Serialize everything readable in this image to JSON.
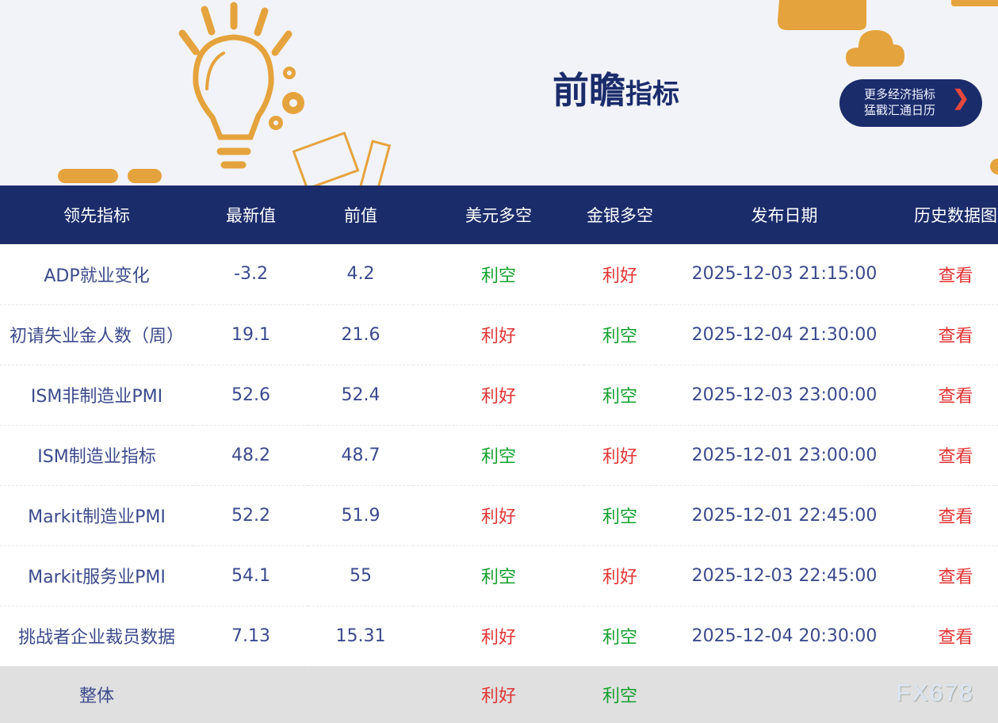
{
  "banner": {
    "title_big": "前瞻",
    "title_small": "指标",
    "more_line1": "更多经济指标",
    "more_line2": "猛戳汇通日历",
    "more_icon": "chevron-right-icon"
  },
  "colors": {
    "header": "#1b2c6b",
    "bullish": "#e03535",
    "bearish": "#14a02e",
    "accent": "#e5a33d"
  },
  "table": {
    "headers": [
      "领先指标",
      "最新值",
      "前值",
      "美元多空",
      "金银多空",
      "发布日期",
      "历史数据图"
    ],
    "rows": [
      [
        "ADP就业变化",
        "-3.2",
        "4.2",
        "利空",
        "利好",
        "2025-12-03 21:15:00",
        "查看"
      ],
      [
        "初请失业金人数（周）",
        "19.1",
        "21.6",
        "利好",
        "利空",
        "2025-12-04 21:30:00",
        "查看"
      ],
      [
        "ISM非制造业PMI",
        "52.6",
        "52.4",
        "利好",
        "利空",
        "2025-12-03 23:00:00",
        "查看"
      ],
      [
        "ISM制造业指标",
        "48.2",
        "48.7",
        "利空",
        "利好",
        "2025-12-01 23:00:00",
        "查看"
      ],
      [
        "Markit制造业PMI",
        "52.2",
        "51.9",
        "利好",
        "利空",
        "2025-12-01 22:45:00",
        "查看"
      ],
      [
        "Markit服务业PMI",
        "54.1",
        "55",
        "利空",
        "利好",
        "2025-12-03 22:45:00",
        "查看"
      ],
      [
        "挑战者企业裁员数据",
        "7.13",
        "15.31",
        "利好",
        "利空",
        "2025-12-04 20:30:00",
        "查看"
      ]
    ],
    "total": {
      "label": "整体",
      "usd": "利好",
      "gold": "利空"
    }
  },
  "watermark": "FX678"
}
